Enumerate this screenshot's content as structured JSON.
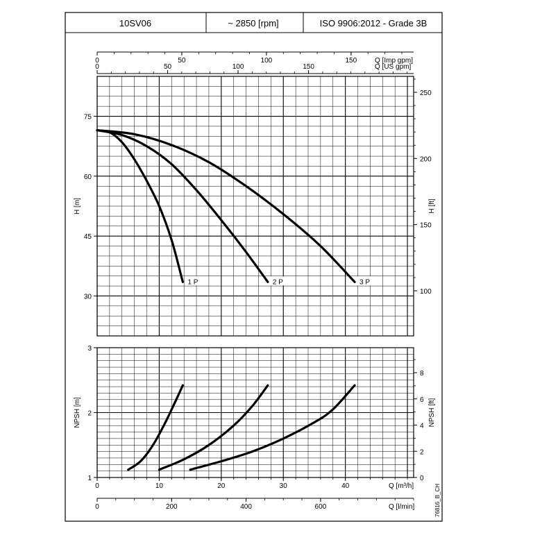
{
  "header": {
    "model": "10SV06",
    "speed": "~ 2850 [rpm]",
    "standard": "ISO 9906:2012 - Grade 3B"
  },
  "footer_code": "76816_B_CH",
  "chart_data": [
    {
      "type": "line",
      "panel": "head",
      "ylabel": "H [m]",
      "ylabel_right": "H [ft]",
      "ylim": [
        20,
        85
      ],
      "yticks": [
        30,
        45,
        60,
        75
      ],
      "yticks_right": [
        100,
        150,
        200,
        250
      ],
      "xlim": [
        0,
        51
      ],
      "x_axes": [
        {
          "label": "Q [Imp gpm]",
          "ticks": [
            0,
            50,
            100,
            150
          ]
        },
        {
          "label": "Q [US gpm]",
          "ticks": [
            0,
            50,
            100,
            150
          ]
        }
      ],
      "grid": true,
      "series": [
        {
          "name": "1 P",
          "x": [
            0,
            2,
            4,
            6,
            8,
            10,
            12,
            13.8
          ],
          "y": [
            71.5,
            71.0,
            68.5,
            64.2,
            58.8,
            52.5,
            44.0,
            33.5
          ]
        },
        {
          "name": "2 P",
          "x": [
            0,
            4,
            8,
            12,
            16,
            20,
            24,
            27.5
          ],
          "y": [
            71.5,
            70.3,
            67.5,
            63.0,
            56.5,
            49.0,
            41.0,
            33.5
          ]
        },
        {
          "name": "3 P",
          "x": [
            0,
            6,
            12,
            18,
            24,
            30,
            36,
            41.5
          ],
          "y": [
            71.5,
            70.5,
            67.8,
            63.5,
            57.5,
            50.5,
            42.5,
            33.5
          ]
        }
      ]
    },
    {
      "type": "line",
      "panel": "npsh",
      "ylabel": "NPSH [m]",
      "ylabel_right": "NPSH [ft]",
      "ylim": [
        1,
        3
      ],
      "yticks": [
        1,
        2,
        3
      ],
      "yticks_right": [
        0,
        2,
        4,
        6,
        8
      ],
      "xlim": [
        0,
        51
      ],
      "x_axes": [
        {
          "label": "Q [m³/h]",
          "ticks": [
            0,
            10,
            20,
            30,
            40
          ]
        },
        {
          "label": "Q [l/min]",
          "ticks": [
            0,
            200,
            400,
            600
          ]
        }
      ],
      "grid": true,
      "series": [
        {
          "name": "1 P",
          "x": [
            5,
            7,
            9,
            11,
            12.5,
            13.8
          ],
          "y": [
            1.12,
            1.25,
            1.5,
            1.85,
            2.15,
            2.42
          ]
        },
        {
          "name": "2 P",
          "x": [
            10,
            14,
            18,
            22,
            25,
            27.5
          ],
          "y": [
            1.12,
            1.28,
            1.5,
            1.8,
            2.1,
            2.42
          ]
        },
        {
          "name": "3 P",
          "x": [
            15,
            20,
            25,
            30,
            35,
            38,
            41.5
          ],
          "y": [
            1.12,
            1.25,
            1.4,
            1.6,
            1.85,
            2.05,
            2.42
          ]
        }
      ]
    }
  ]
}
